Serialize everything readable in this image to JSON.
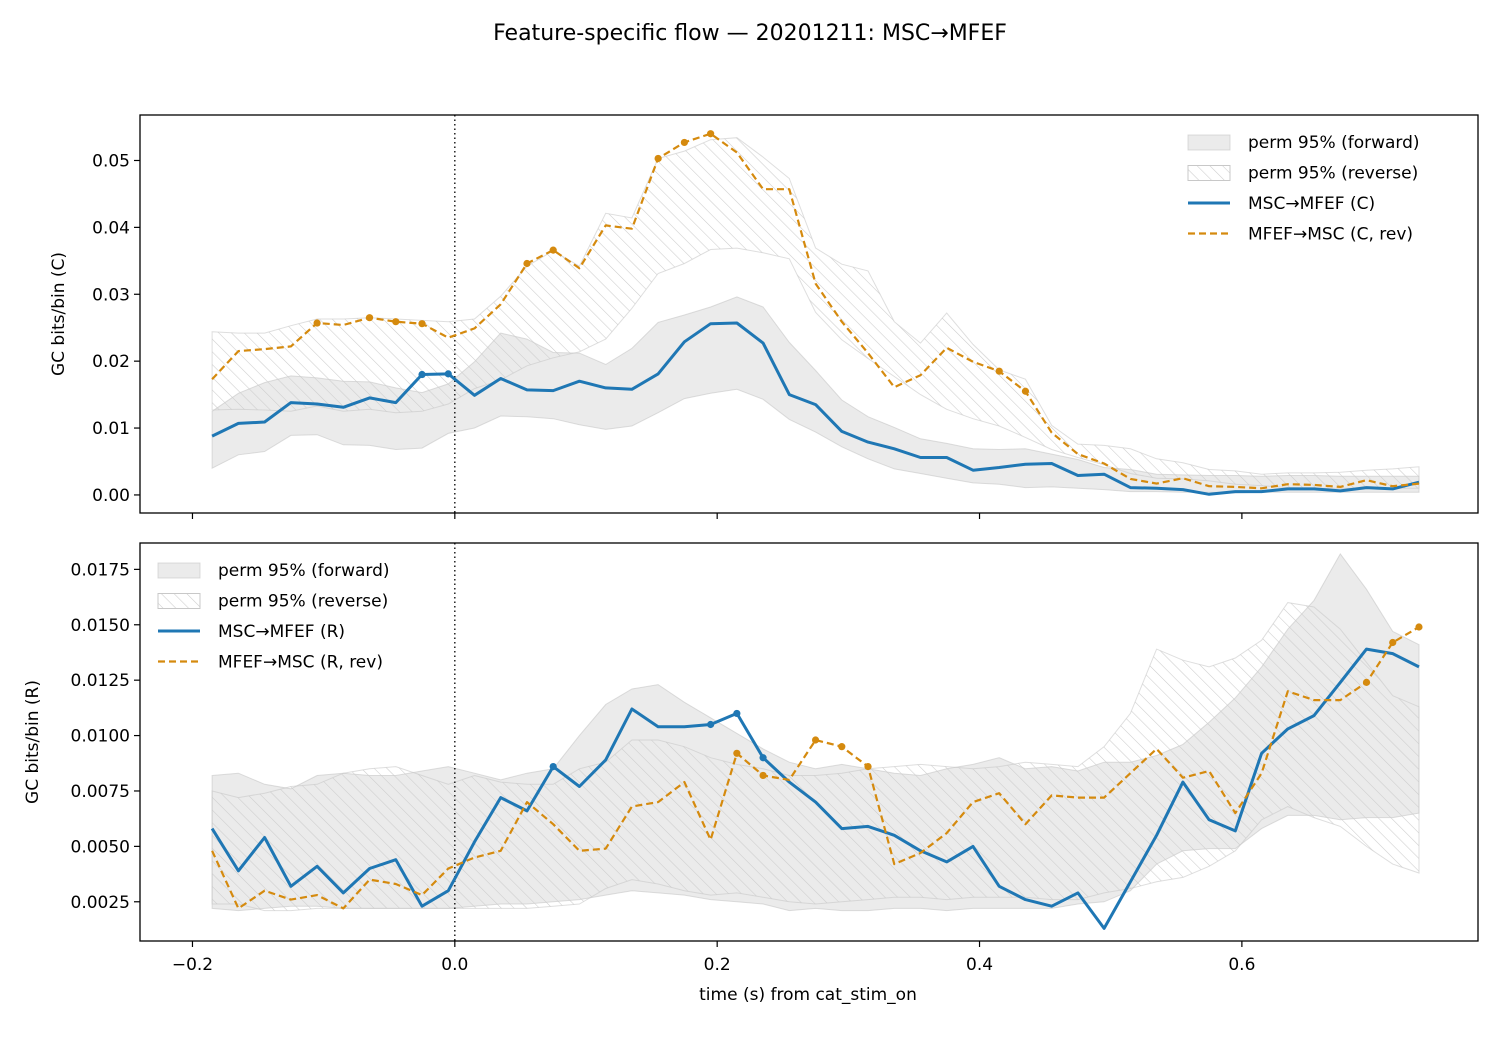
{
  "figure": {
    "title": "Feature-specific flow — 20201211: MSC→MFEF",
    "xlabel": "time (s) from cat_stim_on",
    "colors": {
      "forward_line": "#1f77b4",
      "reverse_line": "#d58a0e",
      "band_forward": "#bdbdbd",
      "band_reverse_hatch": "#c8c8c8",
      "stim_marker": "#000000"
    }
  },
  "chart_data": [
    {
      "type": "line",
      "panel": "top",
      "ylabel": "GC bits/bin (C)",
      "xlim": [
        -0.24,
        0.78
      ],
      "ylim": [
        -0.0027,
        0.0568
      ],
      "xticks": [
        -0.2,
        0.0,
        0.2,
        0.4,
        0.6
      ],
      "xtick_labels_shown": false,
      "yticks": [
        0.0,
        0.01,
        0.02,
        0.03,
        0.04,
        0.05
      ],
      "ytick_labels": [
        "0.00",
        "0.01",
        "0.02",
        "0.03",
        "0.04",
        "0.05"
      ],
      "vline_x": 0.0,
      "legend_position": "upper right",
      "legend": [
        {
          "label": "perm 95% (forward)",
          "kind": "band"
        },
        {
          "label": "perm 95% (reverse)",
          "kind": "hatch"
        },
        {
          "label": "MSC→MFEF (C)",
          "kind": "solid"
        },
        {
          "label": "MFEF→MSC (C, rev)",
          "kind": "dashed"
        }
      ],
      "x": [
        -0.185,
        -0.165,
        -0.145,
        -0.125,
        -0.105,
        -0.085,
        -0.065,
        -0.045,
        -0.025,
        -0.005,
        0.015,
        0.035,
        0.055,
        0.075,
        0.095,
        0.115,
        0.135,
        0.155,
        0.175,
        0.195,
        0.215,
        0.235,
        0.255,
        0.275,
        0.295,
        0.315,
        0.335,
        0.355,
        0.375,
        0.395,
        0.415,
        0.435,
        0.455,
        0.475,
        0.495,
        0.515,
        0.535,
        0.555,
        0.575,
        0.595,
        0.615,
        0.635,
        0.655,
        0.675,
        0.695,
        0.715,
        0.735
      ],
      "series": [
        {
          "name": "MSC→MFEF (C)",
          "style": "solid",
          "values": [
            0.0088,
            0.0107,
            0.0109,
            0.0138,
            0.0136,
            0.0131,
            0.0145,
            0.0138,
            0.018,
            0.0181,
            0.0149,
            0.0174,
            0.0157,
            0.0156,
            0.017,
            0.016,
            0.0158,
            0.0181,
            0.0229,
            0.0256,
            0.0257,
            0.0227,
            0.015,
            0.0135,
            0.0095,
            0.0079,
            0.0069,
            0.0056,
            0.0056,
            0.0037,
            0.0041,
            0.0046,
            0.0047,
            0.0029,
            0.0031,
            0.0011,
            0.001,
            0.0008,
            0.0001,
            0.0005,
            0.0005,
            0.0009,
            0.0009,
            0.0006,
            0.0011,
            0.0009,
            0.0019
          ],
          "sig_markers_x": [
            -0.025,
            -0.005
          ]
        },
        {
          "name": "MFEF→MSC (C, rev)",
          "style": "dashed",
          "values": [
            0.0173,
            0.0215,
            0.0218,
            0.0222,
            0.0257,
            0.0254,
            0.0265,
            0.0259,
            0.0256,
            0.0235,
            0.0249,
            0.0285,
            0.0346,
            0.0366,
            0.0339,
            0.0403,
            0.0398,
            0.0503,
            0.0527,
            0.054,
            0.0512,
            0.0457,
            0.0457,
            0.0316,
            0.0259,
            0.0212,
            0.0161,
            0.0179,
            0.022,
            0.0199,
            0.0185,
            0.0155,
            0.0093,
            0.0061,
            0.0047,
            0.0024,
            0.0017,
            0.0025,
            0.0013,
            0.0012,
            0.001,
            0.0016,
            0.0015,
            0.0012,
            0.0022,
            0.0013,
            0.0017
          ],
          "sig_markers_x": [
            -0.105,
            -0.065,
            -0.045,
            -0.025,
            0.055,
            0.075,
            0.155,
            0.175,
            0.195,
            0.415,
            0.435
          ]
        }
      ],
      "bands": [
        {
          "name": "perm 95% (forward)",
          "style": "fill",
          "lower": [
            0.004,
            0.006,
            0.0065,
            0.0089,
            0.009,
            0.0075,
            0.0074,
            0.0068,
            0.007,
            0.0092,
            0.01,
            0.0118,
            0.0117,
            0.0114,
            0.0105,
            0.0098,
            0.0103,
            0.0123,
            0.0144,
            0.0152,
            0.0158,
            0.0143,
            0.0113,
            0.0094,
            0.0072,
            0.0054,
            0.0039,
            0.0032,
            0.0025,
            0.0018,
            0.0016,
            0.0011,
            0.0012,
            0.001,
            0.0008,
            0.0005,
            0.0005,
            0.0004,
            0.0004,
            0.0003,
            0.0004,
            0.0004,
            0.0004,
            0.0004,
            0.0004,
            0.0004,
            0.0004
          ],
          "upper": [
            0.0125,
            0.0152,
            0.0168,
            0.0178,
            0.0175,
            0.017,
            0.0169,
            0.016,
            0.0153,
            0.0166,
            0.0199,
            0.0242,
            0.0233,
            0.0213,
            0.0212,
            0.0195,
            0.0219,
            0.0258,
            0.0269,
            0.0281,
            0.0296,
            0.0281,
            0.0228,
            0.0186,
            0.0142,
            0.0117,
            0.0101,
            0.0084,
            0.0077,
            0.0069,
            0.0068,
            0.0069,
            0.0061,
            0.0053,
            0.0041,
            0.0038,
            0.0031,
            0.003,
            0.0029,
            0.0029,
            0.0028,
            0.0029,
            0.0029,
            0.0028,
            0.0028,
            0.0028,
            0.0028
          ]
        },
        {
          "name": "perm 95% (reverse)",
          "style": "hatch",
          "lower": [
            0.0127,
            0.0128,
            0.0127,
            0.0125,
            0.0133,
            0.0125,
            0.0128,
            0.0123,
            0.0125,
            0.0136,
            0.0159,
            0.0172,
            0.0193,
            0.0205,
            0.0214,
            0.0233,
            0.0279,
            0.0331,
            0.0346,
            0.0367,
            0.0369,
            0.0362,
            0.0353,
            0.0273,
            0.0232,
            0.0204,
            0.0177,
            0.015,
            0.0128,
            0.0114,
            0.0103,
            0.0086,
            0.0068,
            0.0056,
            0.0045,
            0.0032,
            0.0025,
            0.0024,
            0.0021,
            0.0016,
            0.0014,
            0.0011,
            0.001,
            0.001,
            0.001,
            0.001,
            0.001
          ],
          "upper": [
            0.0244,
            0.0242,
            0.0242,
            0.0253,
            0.0263,
            0.0263,
            0.0265,
            0.0263,
            0.0261,
            0.0259,
            0.0263,
            0.0297,
            0.0342,
            0.0365,
            0.0342,
            0.0421,
            0.0414,
            0.0503,
            0.0514,
            0.0531,
            0.0534,
            0.0505,
            0.0473,
            0.0369,
            0.0345,
            0.0335,
            0.0259,
            0.0227,
            0.0272,
            0.0225,
            0.0187,
            0.0173,
            0.0104,
            0.0076,
            0.0074,
            0.0069,
            0.0054,
            0.0048,
            0.0038,
            0.0036,
            0.0031,
            0.0033,
            0.0033,
            0.0034,
            0.0037,
            0.0039,
            0.0042
          ]
        }
      ]
    },
    {
      "type": "line",
      "panel": "bottom",
      "ylabel": "GC bits/bin (R)",
      "xlim": [
        -0.24,
        0.78
      ],
      "ylim": [
        0.00073,
        0.01869
      ],
      "xticks": [
        -0.2,
        0.0,
        0.2,
        0.4,
        0.6
      ],
      "xtick_labels": [
        "−0.2",
        "0.0",
        "0.2",
        "0.4",
        "0.6"
      ],
      "yticks": [
        0.0025,
        0.005,
        0.0075,
        0.01,
        0.0125,
        0.015,
        0.0175
      ],
      "ytick_labels": [
        "0.0025",
        "0.0050",
        "0.0075",
        "0.0100",
        "0.0125",
        "0.0150",
        "0.0175"
      ],
      "vline_x": 0.0,
      "legend_position": "upper left",
      "legend": [
        {
          "label": "perm 95% (forward)",
          "kind": "band"
        },
        {
          "label": "perm 95% (reverse)",
          "kind": "hatch"
        },
        {
          "label": "MSC→MFEF (R)",
          "kind": "solid"
        },
        {
          "label": "MFEF→MSC (R, rev)",
          "kind": "dashed"
        }
      ],
      "x": [
        -0.185,
        -0.165,
        -0.145,
        -0.125,
        -0.105,
        -0.085,
        -0.065,
        -0.045,
        -0.025,
        -0.005,
        0.015,
        0.035,
        0.055,
        0.075,
        0.095,
        0.115,
        0.135,
        0.155,
        0.175,
        0.195,
        0.215,
        0.235,
        0.255,
        0.275,
        0.295,
        0.315,
        0.335,
        0.355,
        0.375,
        0.395,
        0.415,
        0.435,
        0.455,
        0.475,
        0.495,
        0.515,
        0.535,
        0.555,
        0.575,
        0.595,
        0.615,
        0.635,
        0.655,
        0.675,
        0.695,
        0.715,
        0.735
      ],
      "series": [
        {
          "name": "MSC→MFEF (R)",
          "style": "solid",
          "values": [
            0.0058,
            0.0039,
            0.0054,
            0.0032,
            0.0041,
            0.0029,
            0.004,
            0.0044,
            0.0023,
            0.003,
            0.0052,
            0.0072,
            0.0066,
            0.0086,
            0.0077,
            0.0089,
            0.0112,
            0.0104,
            0.0104,
            0.0105,
            0.011,
            0.009,
            0.0079,
            0.007,
            0.0058,
            0.0059,
            0.0055,
            0.0048,
            0.0043,
            0.005,
            0.0032,
            0.0026,
            0.0023,
            0.0029,
            0.0013,
            0.0034,
            0.0055,
            0.0079,
            0.0062,
            0.0057,
            0.0092,
            0.0103,
            0.0109,
            0.0124,
            0.0139,
            0.0137,
            0.0131
          ],
          "sig_markers_x": [
            0.075,
            0.195,
            0.215,
            0.235
          ]
        },
        {
          "name": "MFEF→MSC (R, rev)",
          "style": "dashed",
          "values": [
            0.0048,
            0.0022,
            0.003,
            0.0026,
            0.0028,
            0.0022,
            0.0035,
            0.0033,
            0.0028,
            0.004,
            0.0045,
            0.0048,
            0.007,
            0.006,
            0.0048,
            0.0049,
            0.0068,
            0.007,
            0.0079,
            0.0053,
            0.0092,
            0.0082,
            0.008,
            0.0098,
            0.0095,
            0.0086,
            0.0042,
            0.0047,
            0.0056,
            0.007,
            0.0074,
            0.006,
            0.0073,
            0.0072,
            0.0072,
            0.0083,
            0.0094,
            0.0081,
            0.0084,
            0.0065,
            0.0083,
            0.012,
            0.0116,
            0.0116,
            0.0124,
            0.0142,
            0.0149
          ],
          "sig_markers_x": [
            0.215,
            0.235,
            0.275,
            0.295,
            0.315,
            0.695,
            0.715,
            0.735
          ]
        }
      ],
      "bands": [
        {
          "name": "perm 95% (forward)",
          "style": "fill",
          "lower": [
            0.0022,
            0.0021,
            0.0022,
            0.0023,
            0.0023,
            0.0022,
            0.0022,
            0.0022,
            0.0022,
            0.0022,
            0.0023,
            0.0024,
            0.0024,
            0.0025,
            0.0026,
            0.0028,
            0.003,
            0.0029,
            0.0028,
            0.0026,
            0.0025,
            0.0024,
            0.0021,
            0.0022,
            0.0021,
            0.0021,
            0.0022,
            0.0022,
            0.0021,
            0.0022,
            0.0022,
            0.0022,
            0.0022,
            0.0024,
            0.0025,
            0.003,
            0.0042,
            0.0048,
            0.0049,
            0.0049,
            0.0058,
            0.0064,
            0.0064,
            0.0062,
            0.0063,
            0.0063,
            0.0065
          ],
          "upper": [
            0.0082,
            0.0083,
            0.0078,
            0.0076,
            0.0082,
            0.0083,
            0.0082,
            0.0082,
            0.0084,
            0.0086,
            0.0083,
            0.008,
            0.0083,
            0.0085,
            0.01,
            0.0114,
            0.0121,
            0.0123,
            0.0115,
            0.0108,
            0.0101,
            0.0094,
            0.0088,
            0.0085,
            0.0087,
            0.0085,
            0.0083,
            0.0082,
            0.0085,
            0.0087,
            0.009,
            0.0085,
            0.0086,
            0.0084,
            0.0088,
            0.0088,
            0.0091,
            0.0096,
            0.0106,
            0.0117,
            0.0131,
            0.0148,
            0.0161,
            0.0182,
            0.0166,
            0.0147,
            0.0141
          ]
        },
        {
          "name": "perm 95% (reverse)",
          "style": "hatch",
          "lower": [
            0.0024,
            0.0024,
            0.0021,
            0.0021,
            0.0022,
            0.0022,
            0.0022,
            0.0022,
            0.0022,
            0.0022,
            0.0022,
            0.0022,
            0.0022,
            0.0023,
            0.0024,
            0.0031,
            0.0035,
            0.0033,
            0.003,
            0.0028,
            0.0029,
            0.0027,
            0.0025,
            0.0024,
            0.0025,
            0.0026,
            0.0027,
            0.0027,
            0.0026,
            0.0027,
            0.0027,
            0.0027,
            0.0026,
            0.0026,
            0.0029,
            0.0031,
            0.0034,
            0.0036,
            0.0041,
            0.0048,
            0.0062,
            0.0068,
            0.0063,
            0.0059,
            0.005,
            0.0042,
            0.0038
          ],
          "upper": [
            0.0075,
            0.0072,
            0.0074,
            0.0077,
            0.0078,
            0.0083,
            0.0085,
            0.0086,
            0.0082,
            0.0078,
            0.0082,
            0.0079,
            0.0078,
            0.0078,
            0.0085,
            0.0088,
            0.0098,
            0.0098,
            0.0095,
            0.009,
            0.0087,
            0.0085,
            0.0082,
            0.0082,
            0.0083,
            0.0085,
            0.0086,
            0.0087,
            0.0086,
            0.0085,
            0.0086,
            0.0088,
            0.0087,
            0.0086,
            0.0095,
            0.011,
            0.0139,
            0.0134,
            0.0131,
            0.0135,
            0.0143,
            0.016,
            0.0158,
            0.0148,
            0.0133,
            0.0118,
            0.0113
          ]
        }
      ]
    }
  ]
}
